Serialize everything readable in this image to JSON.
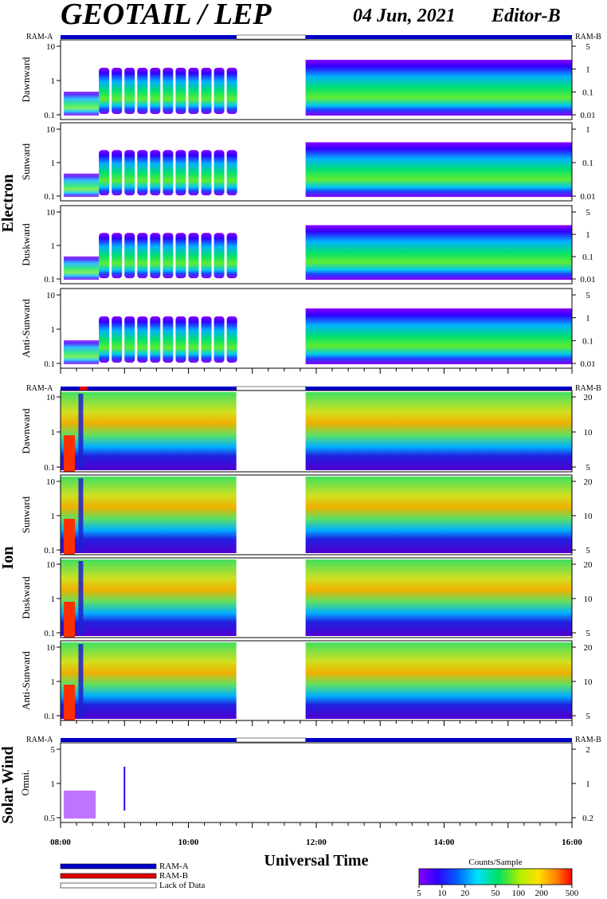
{
  "header": {
    "title": "GEOTAIL / LEP",
    "date": "04 Jun, 2021",
    "editor": "Editor-B"
  },
  "chart_data": {
    "type": "heatmap",
    "xlabel": "Universal Time",
    "x_ticks": [
      "08:00",
      "10:00",
      "12:00",
      "14:00",
      "16:00"
    ],
    "x_range_hours": [
      8,
      16
    ],
    "data_gaps": [
      {
        "start": "10:45",
        "end": "11:50"
      }
    ],
    "ram_bar_labels": {
      "left": "RAM-A",
      "right": "RAM-B"
    },
    "groups": [
      {
        "name": "Electron",
        "panels": [
          {
            "name": "Dawnward",
            "y_left_ticks": [
              "10",
              "1",
              "0.1"
            ],
            "y_right_ticks": [
              "5",
              "1",
              "0.1",
              "0.01"
            ]
          },
          {
            "name": "Sunward",
            "y_left_ticks": [
              "10",
              "1",
              "0.1"
            ],
            "y_right_ticks": [
              "1",
              "0.1",
              "0.01"
            ]
          },
          {
            "name": "Duskward",
            "y_left_ticks": [
              "10",
              "1",
              "0.1"
            ],
            "y_right_ticks": [
              "5",
              "1",
              "0.1",
              "0.01"
            ]
          },
          {
            "name": "Anti-Sunward",
            "y_left_ticks": [
              "10",
              "1",
              "0.1"
            ],
            "y_right_ticks": [
              "5",
              "1",
              "0.1",
              "0.01"
            ]
          }
        ]
      },
      {
        "name": "Ion",
        "panels": [
          {
            "name": "Dawnward",
            "y_left_ticks": [
              "10",
              "1",
              "0.1"
            ],
            "y_right_ticks": [
              "20",
              "10",
              "5"
            ]
          },
          {
            "name": "Sunward",
            "y_left_ticks": [
              "10",
              "1",
              "0.1"
            ],
            "y_right_ticks": [
              "20",
              "10",
              "5"
            ]
          },
          {
            "name": "Duskward",
            "y_left_ticks": [
              "10",
              "1",
              "0.1"
            ],
            "y_right_ticks": [
              "20",
              "10",
              "5"
            ]
          },
          {
            "name": "Anti-Sunward",
            "y_left_ticks": [
              "10",
              "1",
              "0.1"
            ],
            "y_right_ticks": [
              "20",
              "10",
              "5"
            ]
          }
        ]
      },
      {
        "name": "Solar Wind",
        "panels": [
          {
            "name": "Omni.",
            "y_left_ticks": [
              "5",
              "1",
              "0.5"
            ],
            "y_right_ticks": [
              "2",
              "1",
              "0.2"
            ]
          }
        ]
      }
    ],
    "colorbar": {
      "title": "Counts/Sample",
      "ticks": [
        "5",
        "10",
        "20",
        "50",
        "100",
        "200",
        "500"
      ],
      "range": [
        5,
        500
      ],
      "scale": "log"
    },
    "legend": [
      {
        "label": "RAM-A",
        "color": "#0000c8"
      },
      {
        "label": "RAM-B",
        "color": "#e00000"
      },
      {
        "label": "Lack of Data",
        "color": "#ffffff"
      }
    ]
  }
}
